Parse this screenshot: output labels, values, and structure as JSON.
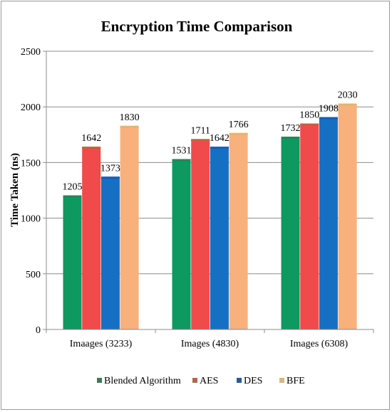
{
  "chart_data": {
    "type": "bar",
    "title": "Encryption Time Comparison",
    "xlabel": "",
    "ylabel": "Time Taken (ns)",
    "categories": [
      "Imaages (3233)",
      "Images (4830)",
      "Images (6308)"
    ],
    "series": [
      {
        "name": "Blended Algorithm",
        "values": [
          1205,
          1531,
          1732
        ],
        "color": "#0d9960",
        "edge": "#3c7a58"
      },
      {
        "name": "AES",
        "values": [
          1642,
          1711,
          1850
        ],
        "color": "#f04a4a",
        "edge": "#b0684a"
      },
      {
        "name": "DES",
        "values": [
          1373,
          1642,
          1908
        ],
        "color": "#1570c4",
        "edge": "#2a5a9a"
      },
      {
        "name": "BFE",
        "values": [
          1830,
          1766,
          2030
        ],
        "color": "#f8b07c",
        "edge": "#d8b87c"
      }
    ],
    "ylim": [
      0,
      2500
    ],
    "yticks": [
      0,
      500,
      1000,
      1500,
      2000,
      2500
    ],
    "grid": true,
    "legend": "bottom"
  }
}
